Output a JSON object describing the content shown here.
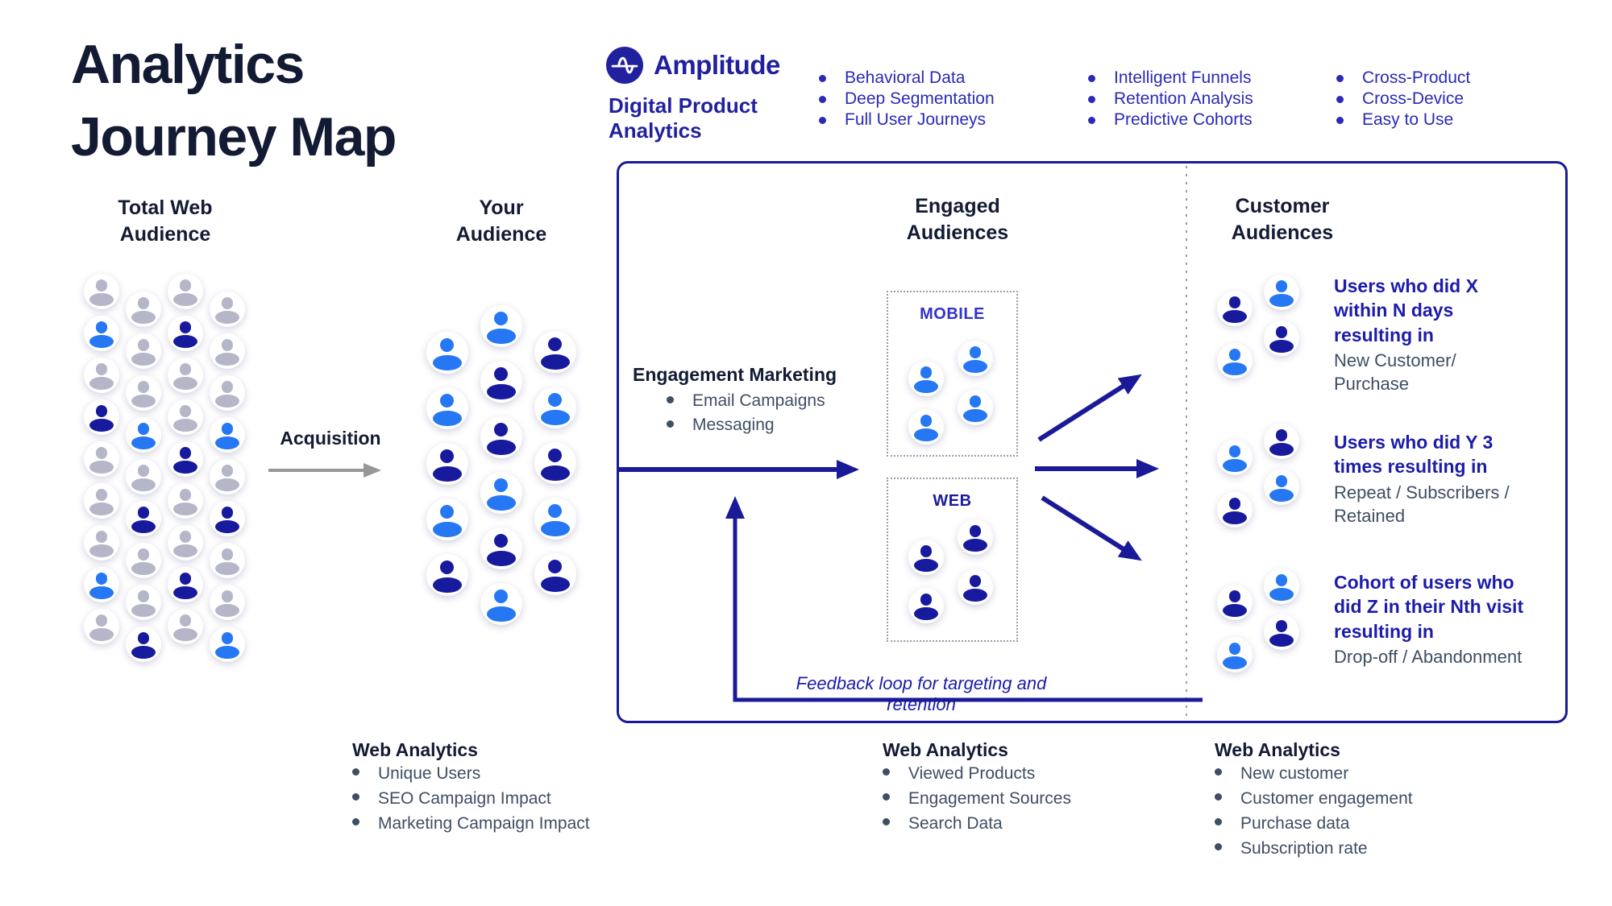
{
  "colors": {
    "gray": "#b6b6c9",
    "blue": "#2577f3",
    "navy": "#181a9e",
    "dark": "#121b33",
    "slate": "#3e4e63",
    "accent_text": "#2a2ab8",
    "brand_navy": "#21219f",
    "segment_bold": "#1c1caa",
    "box_border": "#1a1a99",
    "mobile_label": "#3232cf",
    "web_label": "#1a1a9e",
    "arrow_gray": "#979797",
    "dot_gray": "#9b9bab"
  },
  "title": "Analytics\nJourney Map",
  "brand": {
    "name": "Amplitude",
    "subtitle": "Digital Product\nAnalytics",
    "feature_columns": [
      [
        "Behavioral Data",
        "Deep Segmentation",
        "Full User Journeys"
      ],
      [
        "Intelligent Funnels",
        "Retention Analysis",
        "Predictive Cohorts"
      ],
      [
        "Cross-Product",
        "Cross-Device",
        "Easy to Use"
      ]
    ]
  },
  "total_web_audience": {
    "title": "Total Web\nAudience",
    "grid": [
      [
        "gray",
        "gray",
        "gray",
        "gray"
      ],
      [
        "blue",
        "gray",
        "navy",
        "gray"
      ],
      [
        "gray",
        "gray",
        "gray",
        "gray"
      ],
      [
        "navy",
        "blue",
        "gray",
        "blue"
      ],
      [
        "gray",
        "gray",
        "navy",
        "gray"
      ],
      [
        "gray",
        "navy",
        "gray",
        "navy"
      ],
      [
        "gray",
        "gray",
        "gray",
        "gray"
      ],
      [
        "blue",
        "gray",
        "navy",
        "gray"
      ],
      [
        "gray",
        "navy",
        "gray",
        "blue"
      ]
    ]
  },
  "acquisition_label": "Acquisition",
  "your_audience": {
    "title": "Your\nAudience",
    "columns": [
      [
        "blue",
        "blue",
        "navy",
        "blue",
        "navy"
      ],
      [
        "blue",
        "navy",
        "navy",
        "blue",
        "navy",
        "blue"
      ],
      [
        "navy",
        "blue",
        "navy",
        "blue",
        "navy"
      ]
    ]
  },
  "engaged": {
    "title": "Engaged\nAudiences",
    "marketing_title": "Engagement Marketing",
    "marketing_items": [
      "Email Campaigns",
      "Messaging"
    ],
    "mobile_label": "MOBILE",
    "mobile_icons": [
      "blue",
      "blue",
      "blue",
      "blue"
    ],
    "web_label": "WEB",
    "web_icons": [
      "navy",
      "navy",
      "navy",
      "navy"
    ],
    "feedback_label": "Feedback loop for targeting and retention"
  },
  "customer": {
    "title": "Customer\nAudiences",
    "segments": [
      {
        "icons": [
          "navy",
          "blue",
          "blue",
          "navy"
        ],
        "bold": "Users who did X\nwithin N days\nresulting in",
        "normal": "New Customer/\nPurchase"
      },
      {
        "icons": [
          "blue",
          "navy",
          "navy",
          "blue"
        ],
        "bold": "Users who did Y 3\ntimes resulting in",
        "normal": "Repeat / Subscribers /\nRetained"
      },
      {
        "icons": [
          "navy",
          "blue",
          "blue",
          "navy"
        ],
        "bold": "Cohort of users who\ndid Z in their Nth visit\nresulting in",
        "normal": "Drop-off / Abandonment"
      }
    ]
  },
  "bottom_lists": [
    {
      "title": "Web Analytics",
      "items": [
        "Unique Users",
        "SEO Campaign Impact",
        "Marketing Campaign Impact"
      ]
    },
    {
      "title": "Web Analytics",
      "items": [
        "Viewed Products",
        "Engagement Sources",
        "Search Data"
      ]
    },
    {
      "title": "Web Analytics",
      "items": [
        "New customer",
        "Customer engagement",
        "Purchase data",
        "Subscription rate"
      ]
    }
  ]
}
